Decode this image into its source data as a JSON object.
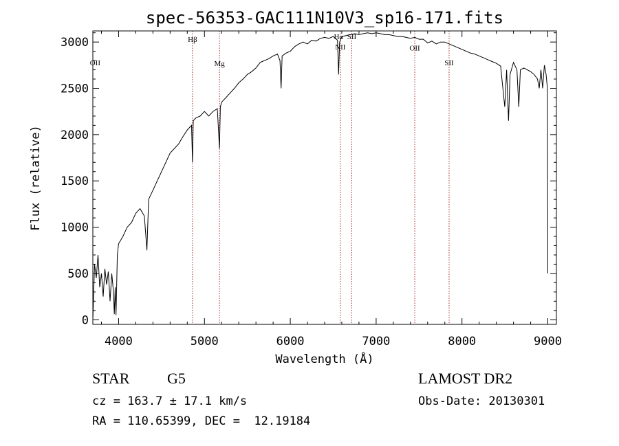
{
  "chart_data": {
    "type": "line",
    "title": "spec-56353-GAC111N10V3_sp16-171.fits",
    "xlabel": "Wavelength (Å)",
    "ylabel": "Flux (relative)",
    "xlim": [
      3700,
      9100
    ],
    "ylim": [
      -50,
      3120
    ],
    "xticks": [
      4000,
      5000,
      6000,
      7000,
      8000,
      9000
    ],
    "yticks": [
      0,
      500,
      1000,
      1500,
      2000,
      2500,
      3000
    ],
    "grid": false,
    "series": [
      {
        "name": "spectrum",
        "x": [
          3700,
          3720,
          3740,
          3760,
          3780,
          3800,
          3820,
          3840,
          3860,
          3880,
          3900,
          3920,
          3940,
          3950,
          3960,
          3970,
          3985,
          4000,
          4050,
          4100,
          4150,
          4200,
          4250,
          4300,
          4330,
          4350,
          4400,
          4450,
          4500,
          4550,
          4600,
          4650,
          4700,
          4750,
          4800,
          4850,
          4861,
          4870,
          4900,
          4950,
          5000,
          5050,
          5100,
          5150,
          5175,
          5185,
          5200,
          5250,
          5300,
          5350,
          5400,
          5450,
          5500,
          5550,
          5600,
          5650,
          5700,
          5750,
          5800,
          5850,
          5880,
          5893,
          5905,
          5950,
          6000,
          6050,
          6100,
          6150,
          6200,
          6250,
          6300,
          6350,
          6400,
          6450,
          6500,
          6550,
          6563,
          6575,
          6600,
          6650,
          6700,
          6750,
          6800,
          6850,
          6900,
          6950,
          7000,
          7050,
          7100,
          7150,
          7200,
          7250,
          7300,
          7350,
          7400,
          7450,
          7500,
          7550,
          7600,
          7650,
          7700,
          7750,
          7800,
          7850,
          7900,
          7950,
          8000,
          8050,
          8100,
          8150,
          8200,
          8250,
          8300,
          8350,
          8400,
          8450,
          8498,
          8520,
          8542,
          8560,
          8600,
          8640,
          8662,
          8680,
          8720,
          8760,
          8800,
          8840,
          8880,
          8900,
          8920,
          8940,
          8960,
          8980,
          8995,
          9000
        ],
        "values": [
          0,
          600,
          450,
          700,
          350,
          500,
          250,
          550,
          380,
          520,
          200,
          500,
          300,
          60,
          350,
          50,
          700,
          820,
          900,
          1000,
          1050,
          1150,
          1200,
          1120,
          750,
          1300,
          1400,
          1500,
          1600,
          1700,
          1800,
          1850,
          1900,
          1980,
          2050,
          2100,
          1700,
          2150,
          2180,
          2200,
          2250,
          2200,
          2250,
          2280,
          1850,
          2300,
          2350,
          2400,
          2450,
          2500,
          2560,
          2600,
          2650,
          2680,
          2720,
          2780,
          2800,
          2820,
          2850,
          2870,
          2800,
          2500,
          2850,
          2880,
          2900,
          2950,
          2980,
          3000,
          2980,
          3020,
          3010,
          3040,
          3050,
          3040,
          3060,
          3020,
          2650,
          3000,
          3060,
          3070,
          3080,
          3090,
          3080,
          3090,
          3100,
          3090,
          3100,
          3090,
          3080,
          3080,
          3070,
          3060,
          3060,
          3050,
          3040,
          3050,
          3030,
          3030,
          2990,
          3010,
          2980,
          3000,
          3000,
          2980,
          2960,
          2940,
          2920,
          2900,
          2880,
          2870,
          2850,
          2830,
          2810,
          2790,
          2770,
          2740,
          2300,
          2700,
          2150,
          2650,
          2780,
          2700,
          2300,
          2700,
          2720,
          2700,
          2680,
          2650,
          2600,
          2500,
          2700,
          2500,
          2750,
          2650,
          2500,
          500
        ]
      }
    ],
    "lines": [
      {
        "label": "OII",
        "wavelength": 3727,
        "y_label": 2750,
        "show_line": false
      },
      {
        "label": "Hβ",
        "wavelength": 4861,
        "y_label": 3000,
        "show_line": true
      },
      {
        "label": "Mg",
        "wavelength": 5175,
        "y_label": 2740,
        "show_line": true
      },
      {
        "label": "NII",
        "wavelength": 6583,
        "y_label": 2920,
        "show_line": true
      },
      {
        "label": "Hα",
        "wavelength": 6563,
        "y_label": 3030,
        "show_line": false
      },
      {
        "label": "SII",
        "wavelength": 6716,
        "y_label": 3030,
        "show_line": true
      },
      {
        "label": "OII",
        "wavelength": 7450,
        "y_label": 2910,
        "show_line": true
      },
      {
        "label": "SII",
        "wavelength": 7850,
        "y_label": 2750,
        "show_line": true
      }
    ]
  },
  "info": {
    "object_class": "STAR",
    "subclass": "G5",
    "survey": "LAMOST DR2",
    "cz": "cz = 163.7 ± 17.1 km/s",
    "obs_date": "Obs-Date: 20130301",
    "radec": "RA = 110.65399, DEC =  12.19184"
  },
  "colors": {
    "line": "#000000",
    "marker": "#a52a2a"
  }
}
